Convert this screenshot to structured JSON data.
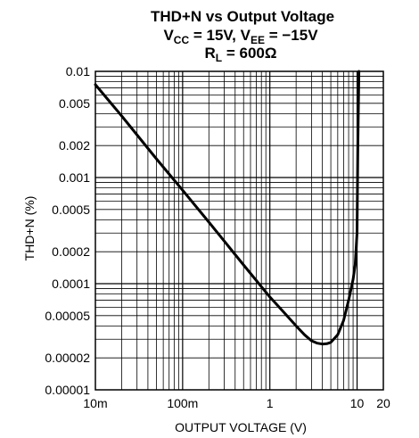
{
  "chart_data": {
    "type": "line",
    "title": {
      "line1": "THD+N vs Output Voltage",
      "line2": {
        "vcc_main": "V",
        "vcc_sub": "CC",
        "vcc_rest": " = 15V, ",
        "vee_main": "V",
        "vee_sub": "EE",
        "vee_rest": " = −15V"
      },
      "line3": {
        "r_main": "R",
        "r_sub": "L",
        "r_rest": " = 600Ω"
      }
    },
    "xlabel": "OUTPUT VOLTAGE (V)",
    "ylabel": "THD+N (%)",
    "xscale": "log",
    "yscale": "log",
    "xlim": [
      0.01,
      20
    ],
    "ylim": [
      1e-05,
      0.01
    ],
    "grid": true,
    "x_ticks": [
      {
        "value": 0.01,
        "label": "10m"
      },
      {
        "value": 0.1,
        "label": "100m"
      },
      {
        "value": 1,
        "label": "1"
      },
      {
        "value": 10,
        "label": "10"
      },
      {
        "value": 20,
        "label": "20"
      }
    ],
    "y_ticks": [
      {
        "value": 0.01,
        "label": "0.01"
      },
      {
        "value": 0.005,
        "label": "0.005"
      },
      {
        "value": 0.002,
        "label": "0.002"
      },
      {
        "value": 0.001,
        "label": "0.001"
      },
      {
        "value": 0.0005,
        "label": "0.0005"
      },
      {
        "value": 0.0002,
        "label": "0.0002"
      },
      {
        "value": 0.0001,
        "label": "0.0001"
      },
      {
        "value": 5e-05,
        "label": "0.00005"
      },
      {
        "value": 2e-05,
        "label": "0.00002"
      },
      {
        "value": 1e-05,
        "label": "0.00001"
      }
    ],
    "series": [
      {
        "color": "#000000",
        "x": [
          0.01,
          0.02,
          0.05,
          0.1,
          0.2,
          0.5,
          1,
          1.5,
          2,
          2.5,
          3,
          3.5,
          4,
          4.5,
          5,
          6,
          7,
          8,
          9,
          9.5,
          10,
          10.2,
          10.5
        ],
        "y": [
          0.0075,
          0.0038,
          0.0015,
          0.00076,
          0.00038,
          0.00015,
          7.5e-05,
          5.2e-05,
          4e-05,
          3.3e-05,
          2.9e-05,
          2.75e-05,
          2.7e-05,
          2.72e-05,
          2.8e-05,
          3.3e-05,
          4.5e-05,
          7e-05,
          0.00011,
          0.00015,
          0.0003,
          0.002,
          0.01
        ]
      }
    ]
  }
}
